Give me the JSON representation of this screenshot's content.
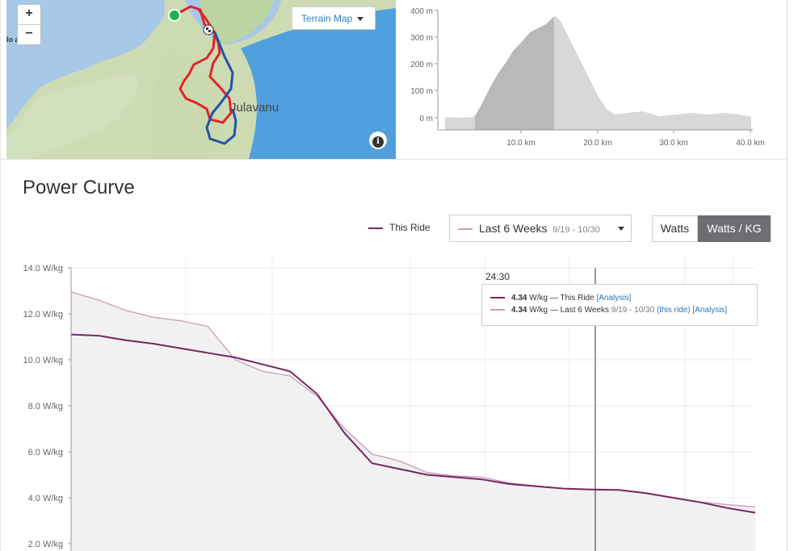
{
  "map": {
    "zoom_in": "+",
    "zoom_out": "−",
    "map_type_label": "Terrain Map",
    "place_label_left": "lo anie",
    "place_label_right": "Julavanu",
    "info_icon": "i",
    "icons": [
      "start-marker-icon",
      "finish-flag-icon",
      "info-icon",
      "caret-down-icon"
    ]
  },
  "elevation": {
    "y_ticks": [
      "400 m",
      "300 m",
      "200 m",
      "100 m",
      "0 m"
    ],
    "x_ticks": [
      "10.0 km",
      "20.0 km",
      "30.0 km",
      "40.0 km"
    ]
  },
  "power_curve": {
    "title": "Power Curve",
    "legend_this_ride": "This Ride",
    "range_label": "Last 6 Weeks",
    "range_dates": "9/19 - 10/30",
    "toggle_watts": "Watts",
    "toggle_watts_kg": "Watts / KG",
    "cursor_time": "24:30",
    "tooltip": {
      "row1_value": "4.34",
      "row1_unit": "W/kg",
      "row1_sep": "—",
      "row1_name": "This Ride",
      "row1_link": "[Analysis]",
      "row2_value": "4.34",
      "row2_unit": "W/kg",
      "row2_sep": "—",
      "row2_name": "Last 6 Weeks",
      "row2_dates": "9/19 - 10/30",
      "row2_link1": "(this ride)",
      "row2_link2": "[Analysis]"
    },
    "colors": {
      "this_ride": "#7a2460",
      "last_6_weeks": "#c79bbb",
      "fill": "#f1f1f2",
      "button_active": "#6d6d72"
    }
  },
  "chart_data": {
    "type": "line",
    "y_ticks": [
      "14.0 W/kg",
      "12.0 W/kg",
      "10.0 W/kg",
      "8.0 W/kg",
      "6.0 W/kg",
      "4.0 W/kg",
      "2.0 W/kg"
    ],
    "ylim": [
      1.7,
      14.1
    ],
    "series": [
      {
        "name": "This Ride",
        "values": [
          11.1,
          11.05,
          10.85,
          10.7,
          10.5,
          10.3,
          10.1,
          9.8,
          9.5,
          8.5,
          6.8,
          5.5,
          5.25,
          5.0,
          4.9,
          4.8,
          4.6,
          4.5,
          4.4,
          4.36,
          4.34,
          4.2,
          4.0,
          3.8,
          3.55,
          3.35
        ]
      },
      {
        "name": "Last 6 Weeks",
        "values": [
          12.95,
          12.6,
          12.15,
          11.85,
          11.7,
          11.45,
          10.0,
          9.5,
          9.3,
          8.4,
          7.0,
          5.9,
          5.6,
          5.1,
          4.95,
          4.9,
          4.65,
          4.5,
          4.4,
          4.36,
          4.34,
          4.2,
          4.0,
          3.82,
          3.7,
          3.6
        ]
      }
    ]
  }
}
